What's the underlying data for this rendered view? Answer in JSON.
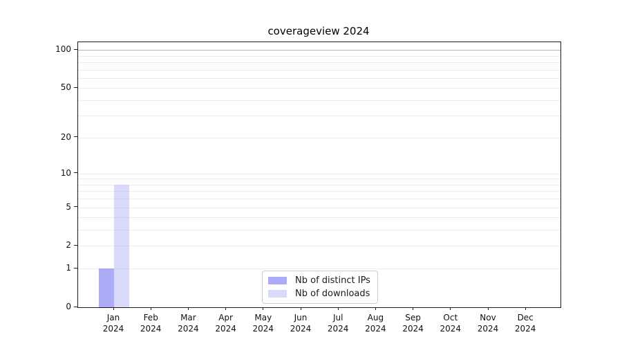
{
  "chart_data": {
    "type": "bar",
    "title": "coverageview 2024",
    "xlabel": "",
    "ylabel": "",
    "yscale": "log1p",
    "ylim": [
      0,
      115
    ],
    "grid": "horizontal",
    "legend_position": "lower center",
    "y_major_ticks": [
      0,
      1,
      2,
      5,
      10,
      20,
      50,
      100
    ],
    "y_minor_gridlines": [
      3,
      4,
      6,
      7,
      8,
      9,
      30,
      40,
      60,
      70,
      80,
      90
    ],
    "x_categories": [
      {
        "line1": "Jan",
        "line2": "2024"
      },
      {
        "line1": "Feb",
        "line2": "2024"
      },
      {
        "line1": "Mar",
        "line2": "2024"
      },
      {
        "line1": "Apr",
        "line2": "2024"
      },
      {
        "line1": "May",
        "line2": "2024"
      },
      {
        "line1": "Jun",
        "line2": "2024"
      },
      {
        "line1": "Jul",
        "line2": "2024"
      },
      {
        "line1": "Aug",
        "line2": "2024"
      },
      {
        "line1": "Sep",
        "line2": "2024"
      },
      {
        "line1": "Oct",
        "line2": "2024"
      },
      {
        "line1": "Nov",
        "line2": "2024"
      },
      {
        "line1": "Dec",
        "line2": "2024"
      }
    ],
    "series": [
      {
        "name": "Nb of distinct IPs",
        "color": "rgba(124,124,243,0.64)",
        "values": [
          1,
          0,
          0,
          0,
          0,
          0,
          0,
          0,
          0,
          0,
          0,
          0
        ]
      },
      {
        "name": "Nb of downloads",
        "color": "rgba(180,180,243,0.50)",
        "values": [
          8,
          0,
          0,
          0,
          0,
          0,
          0,
          0,
          0,
          0,
          0,
          0
        ]
      }
    ]
  }
}
